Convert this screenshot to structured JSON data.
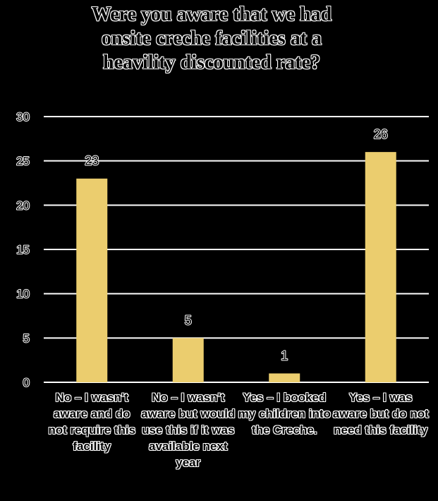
{
  "chart_data": {
    "type": "bar",
    "title_lines": [
      "Were you aware that we had",
      "onsite creche facilities at a",
      "heavility discounted rate?"
    ],
    "categories": [
      "No – I wasn't aware and do not require this facility",
      "No – I wasn't aware but would use this if it was available next year",
      "Yes – I booked my children into the Creche.",
      "Yes – I was aware but do not need this facility"
    ],
    "values": [
      23,
      5,
      1,
      26
    ],
    "data_labels": [
      "23",
      "5",
      "1",
      "26"
    ],
    "ylim": [
      0,
      30
    ],
    "yticks": [
      0,
      5,
      10,
      15,
      20,
      25,
      30
    ],
    "grid": true,
    "legend": "none",
    "xlabel": "",
    "ylabel": ""
  },
  "colors": {
    "bar": "#ebcd6e",
    "background": "#000000",
    "gridline": "#ffffff",
    "text": "#000000",
    "text_outline": "#ffffff"
  }
}
